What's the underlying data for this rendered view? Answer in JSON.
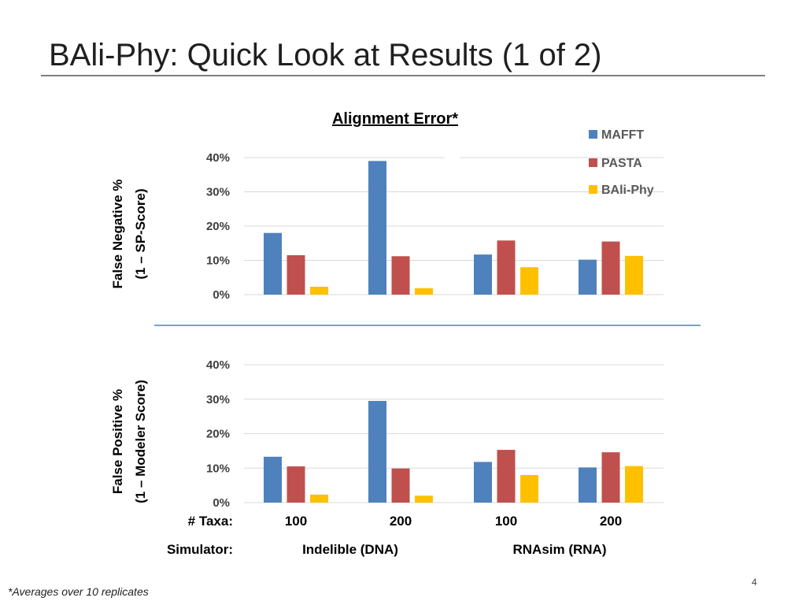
{
  "slide": {
    "title": "BAli-Phy: Quick Look at Results (1 of 2)",
    "footnote": "*Averages over 10 replicates",
    "page_number": "4"
  },
  "chart_data": {
    "type": "bar",
    "title": "Alignment Error*",
    "legend_position": "top-right",
    "series_names": [
      "MAFFT",
      "PASTA",
      "BAli-Phy"
    ],
    "series_colors": [
      "#4f81bd",
      "#c0504d",
      "#ffc000"
    ],
    "category_axis": {
      "row1_label": "# Taxa:",
      "row1_values": [
        "100",
        "200",
        "100",
        "200"
      ],
      "row2_label": "Simulator:",
      "row2_values": [
        "Indelible (DNA)",
        "RNAsim (RNA)"
      ]
    },
    "panels": [
      {
        "ylabel_line1": "False Negative %",
        "ylabel_line2": "(1 – SP-Score)",
        "ylim": [
          0,
          40
        ],
        "yticks": [
          "0%",
          "10%",
          "20%",
          "30%",
          "40%"
        ],
        "grid": true,
        "series": [
          {
            "name": "MAFFT",
            "values": [
              18,
              39,
              11.7,
              10.2
            ]
          },
          {
            "name": "PASTA",
            "values": [
              11.5,
              11.2,
              15.8,
              15.5
            ]
          },
          {
            "name": "BAli-Phy",
            "values": [
              2.3,
              1.9,
              8,
              11.3
            ]
          }
        ]
      },
      {
        "ylabel_line1": "False Positive %",
        "ylabel_line2": "(1 – Modeler Score)",
        "ylim": [
          0,
          40
        ],
        "yticks": [
          "0%",
          "10%",
          "20%",
          "30%",
          "40%"
        ],
        "grid": true,
        "series": [
          {
            "name": "MAFFT",
            "values": [
              13.3,
              29.5,
              11.8,
              10.2
            ]
          },
          {
            "name": "PASTA",
            "values": [
              10.5,
              9.9,
              15.3,
              14.6
            ]
          },
          {
            "name": "BAli-Phy",
            "values": [
              2.3,
              2,
              8,
              10.6
            ]
          }
        ]
      }
    ]
  }
}
